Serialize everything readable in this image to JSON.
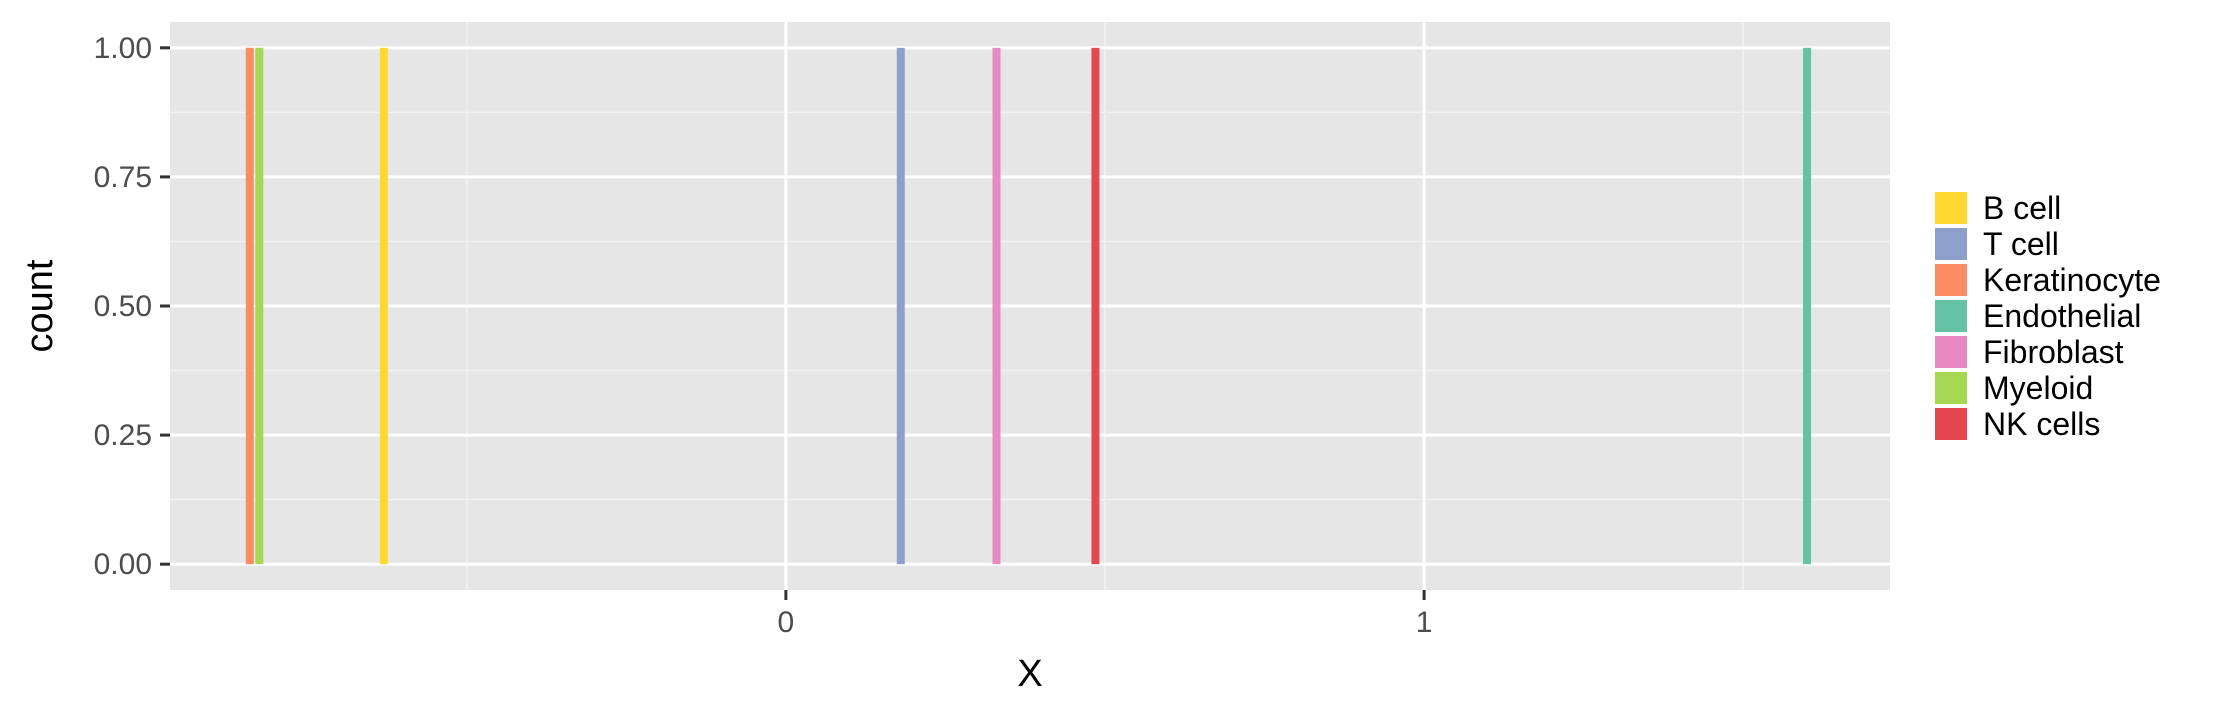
{
  "chart_data": {
    "type": "bar",
    "title": "",
    "xlabel": "X",
    "ylabel": "count",
    "xlim": [
      -0.965,
      1.73
    ],
    "ylim": [
      -0.05,
      1.05
    ],
    "grid": true,
    "legend_position": "right",
    "x_ticks": [
      0,
      1
    ],
    "x_tick_labels": [
      "0",
      "1"
    ],
    "x_minor_ticks": [
      -0.5,
      0.5,
      1.5
    ],
    "y_ticks": [
      0,
      0.25,
      0.5,
      0.75,
      1
    ],
    "y_tick_labels": [
      "0.00",
      "0.25",
      "0.50",
      "0.75",
      "1.00"
    ],
    "y_minor_ticks": [
      0.125,
      0.375,
      0.625,
      0.875
    ],
    "bar_width": 0.012,
    "series": [
      {
        "name": "B cell",
        "x": -0.63,
        "value": 1,
        "color": "#FFD92F"
      },
      {
        "name": "T cell",
        "x": 0.18,
        "value": 1,
        "color": "#8DA0CB"
      },
      {
        "name": "Keratinocyte",
        "x": -0.84,
        "value": 1,
        "color": "#FC8D62"
      },
      {
        "name": "Endothelial",
        "x": 1.6,
        "value": 1,
        "color": "#66C2A5"
      },
      {
        "name": "Fibroblast",
        "x": 0.33,
        "value": 1,
        "color": "#E78AC3"
      },
      {
        "name": "Myeloid",
        "x": -0.825,
        "value": 1,
        "color": "#A6D854"
      },
      {
        "name": "NK cells",
        "x": 0.485,
        "value": 1,
        "color": "#E5474F"
      }
    ]
  }
}
